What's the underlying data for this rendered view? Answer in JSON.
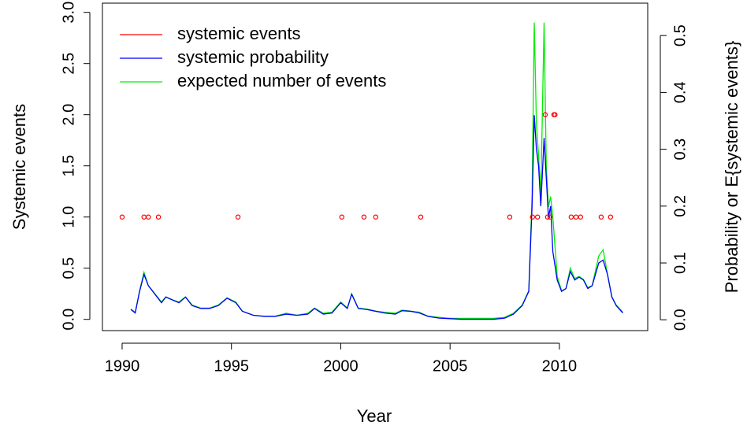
{
  "chart_data": {
    "type": "line",
    "xlabel": "Year",
    "ylabel": "Systemic events",
    "y2label": "Probability or E{systemic events}",
    "xlim": [
      1989.1,
      2014.04
    ],
    "ylim": [
      -0.11,
      3.09
    ],
    "y2lim": [
      -0.019,
      0.557
    ],
    "xticks": [
      1990,
      1995,
      2000,
      2005,
      2010
    ],
    "yticks": [
      {
        "value": 0,
        "label": "0.0"
      },
      {
        "value": 0.5,
        "label": "0.5"
      },
      {
        "value": 1,
        "label": "1.0"
      },
      {
        "value": 1.5,
        "label": "1.5"
      },
      {
        "value": 2,
        "label": "2.0"
      },
      {
        "value": 2.5,
        "label": "2.5"
      },
      {
        "value": 3,
        "label": "3.0"
      }
    ],
    "y2ticks": [
      {
        "value": 0,
        "label": "0.0"
      },
      {
        "value": 0.1,
        "label": "0.1"
      },
      {
        "value": 0.2,
        "label": "0.2"
      },
      {
        "value": 0.3,
        "label": "0.3"
      },
      {
        "value": 0.4,
        "label": "0.4"
      },
      {
        "value": 0.5,
        "label": "0.5"
      }
    ],
    "legend": "top-left",
    "series": [
      {
        "name": "systemic events",
        "color": "#ff0000",
        "type": "scatter",
        "x": [
          1990.0,
          1991.0,
          1991.2,
          1991.66,
          1995.3,
          2000.05,
          2001.06,
          2001.6,
          2003.66,
          2007.73,
          2008.77,
          2009.0,
          2009.35,
          2009.46,
          2009.57,
          2009.75,
          2009.8,
          2010.54,
          2010.76,
          2010.97,
          2011.91,
          2012.34
        ],
        "values": [
          1,
          1,
          1,
          1,
          1,
          1,
          1,
          1,
          1,
          1,
          1,
          1,
          2,
          1,
          1,
          2,
          2,
          1,
          1,
          1,
          1,
          1
        ]
      },
      {
        "name": "systemic probability",
        "color": "#0000ff",
        "axis": "y2",
        "x": [
          1990.4,
          1990.6,
          1990.8,
          1991.0,
          1991.2,
          1991.5,
          1991.8,
          1992.0,
          1992.3,
          1992.6,
          1992.9,
          1993.2,
          1993.6,
          1994.0,
          1994.4,
          1994.8,
          1995.2,
          1995.5,
          1996.0,
          1996.5,
          1997.0,
          1997.5,
          1998.0,
          1998.5,
          1998.8,
          1999.2,
          1999.6,
          2000.0,
          2000.3,
          2000.5,
          2000.8,
          2001.2,
          2001.6,
          2002.0,
          2002.5,
          2002.8,
          2003.2,
          2003.6,
          2004.0,
          2004.5,
          2005.0,
          2005.5,
          2006.0,
          2006.5,
          2007.0,
          2007.5,
          2007.9,
          2008.3,
          2008.6,
          2008.75,
          2008.85,
          2008.95,
          2009.05,
          2009.15,
          2009.3,
          2009.4,
          2009.5,
          2009.6,
          2009.7,
          2009.9,
          2010.1,
          2010.3,
          2010.5,
          2010.7,
          2010.9,
          2011.1,
          2011.3,
          2011.5,
          2011.8,
          2012.0,
          2012.2,
          2012.4,
          2012.6,
          2012.9
        ],
        "values": [
          0.018,
          0.012,
          0.05,
          0.08,
          0.06,
          0.045,
          0.03,
          0.04,
          0.035,
          0.03,
          0.04,
          0.025,
          0.02,
          0.02,
          0.025,
          0.038,
          0.03,
          0.015,
          0.008,
          0.006,
          0.006,
          0.01,
          0.008,
          0.01,
          0.02,
          0.01,
          0.012,
          0.03,
          0.02,
          0.045,
          0.02,
          0.018,
          0.015,
          0.012,
          0.01,
          0.016,
          0.015,
          0.012,
          0.006,
          0.003,
          0.002,
          0.001,
          0.001,
          0.001,
          0.001,
          0.003,
          0.01,
          0.025,
          0.05,
          0.2,
          0.36,
          0.3,
          0.27,
          0.2,
          0.32,
          0.25,
          0.18,
          0.2,
          0.12,
          0.07,
          0.05,
          0.055,
          0.085,
          0.07,
          0.075,
          0.07,
          0.055,
          0.06,
          0.1,
          0.105,
          0.08,
          0.04,
          0.025,
          0.012
        ]
      },
      {
        "name": "expected number of events",
        "color": "#00ee00",
        "x": [
          1990.4,
          1990.6,
          1990.8,
          1991.0,
          1991.2,
          1991.5,
          1991.8,
          1992.0,
          1992.3,
          1992.6,
          1992.9,
          1993.2,
          1993.6,
          1994.0,
          1994.4,
          1994.8,
          1995.2,
          1995.5,
          1996.0,
          1996.5,
          1997.0,
          1997.5,
          1998.0,
          1998.5,
          1998.8,
          1999.2,
          1999.6,
          2000.0,
          2000.3,
          2000.5,
          2000.8,
          2001.2,
          2001.6,
          2002.0,
          2002.5,
          2002.8,
          2003.2,
          2003.6,
          2004.0,
          2004.5,
          2005.0,
          2005.5,
          2006.0,
          2006.5,
          2007.0,
          2007.5,
          2007.9,
          2008.3,
          2008.6,
          2008.75,
          2008.85,
          2008.95,
          2009.05,
          2009.15,
          2009.3,
          2009.4,
          2009.5,
          2009.6,
          2009.7,
          2009.9,
          2010.1,
          2010.3,
          2010.5,
          2010.7,
          2010.9,
          2011.1,
          2011.3,
          2011.5,
          2011.8,
          2012.0,
          2012.2,
          2012.4,
          2012.6,
          2012.9
        ],
        "values": [
          0.1,
          0.07,
          0.28,
          0.46,
          0.33,
          0.25,
          0.17,
          0.22,
          0.19,
          0.17,
          0.22,
          0.14,
          0.11,
          0.11,
          0.14,
          0.21,
          0.17,
          0.08,
          0.04,
          0.03,
          0.03,
          0.06,
          0.04,
          0.06,
          0.11,
          0.06,
          0.07,
          0.17,
          0.11,
          0.25,
          0.11,
          0.1,
          0.08,
          0.07,
          0.06,
          0.09,
          0.08,
          0.07,
          0.03,
          0.02,
          0.01,
          0.01,
          0.01,
          0.01,
          0.01,
          0.02,
          0.06,
          0.14,
          0.28,
          1.2,
          2.9,
          1.9,
          1.6,
          1.2,
          2.9,
          1.5,
          1.1,
          1.2,
          1.0,
          0.42,
          0.28,
          0.3,
          0.5,
          0.4,
          0.42,
          0.39,
          0.31,
          0.33,
          0.62,
          0.68,
          0.44,
          0.22,
          0.14,
          0.07
        ]
      }
    ]
  }
}
